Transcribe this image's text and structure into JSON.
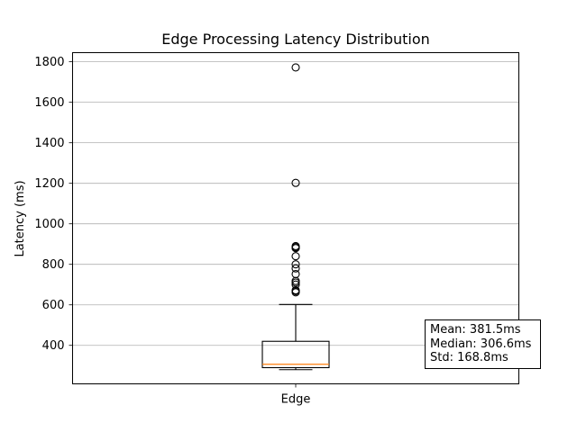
{
  "chart_data": {
    "type": "box",
    "title": "Edge Processing Latency Distribution",
    "xlabel": "",
    "ylabel": "Latency (ms)",
    "categories": [
      "Edge"
    ],
    "ylim": [
      210,
      1845
    ],
    "yticks": [
      400,
      600,
      800,
      1000,
      1200,
      1400,
      1600,
      1800
    ],
    "grid": "horizontal",
    "box": {
      "whisker_low": 280,
      "q1": 290,
      "median": 306.6,
      "q3": 420,
      "whisker_high": 602
    },
    "outliers": [
      1772,
      1202,
      890,
      885,
      880,
      840,
      800,
      780,
      752,
      718,
      710,
      700,
      672,
      668,
      662
    ],
    "colors": {
      "median": "#ff7f0e",
      "box": "#000000",
      "grid": "#b0b0b0"
    }
  },
  "stats": {
    "mean": "Mean: 381.5ms",
    "median": "Median: 306.6ms",
    "std": "Std: 168.8ms"
  }
}
